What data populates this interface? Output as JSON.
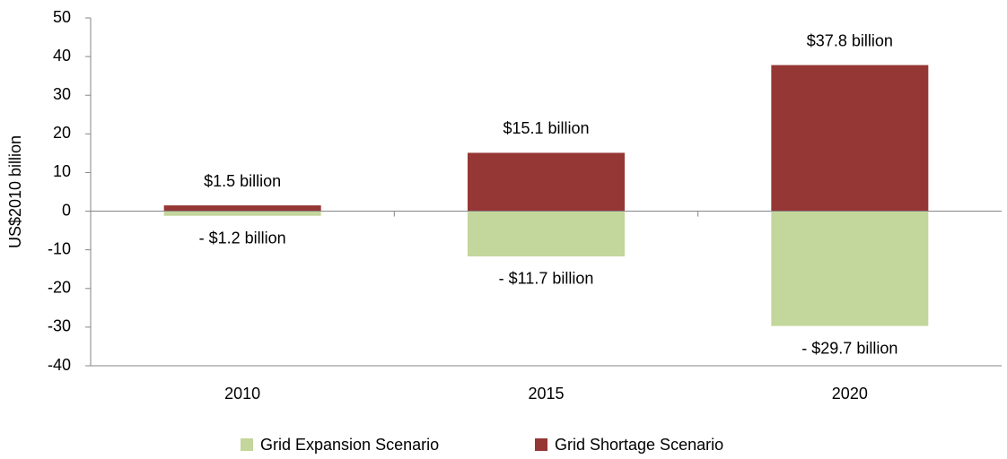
{
  "chart_data": {
    "type": "bar",
    "stacked": true,
    "y_label": "US$2010  billion",
    "categories": [
      "2010",
      "2015",
      "2020"
    ],
    "series": [
      {
        "name": "Grid Expansion Scenario",
        "color": "#c3d69b",
        "values": [
          -1.2,
          -11.7,
          -29.7
        ],
        "value_labels": [
          "- $1.2 billion",
          "- $11.7 billion",
          "- $29.7 billion"
        ]
      },
      {
        "name": "Grid Shortage Scenario",
        "color": "#953735",
        "values": [
          1.5,
          15.1,
          37.8
        ],
        "value_labels": [
          "$1.5 billion",
          "$15.1 billion",
          "$37.8 billion"
        ]
      }
    ],
    "ylim": [
      -40,
      50
    ],
    "yticks": [
      -40,
      -30,
      -20,
      -10,
      0,
      10,
      20,
      30,
      40,
      50
    ],
    "grid": false,
    "legend": "bottom"
  }
}
